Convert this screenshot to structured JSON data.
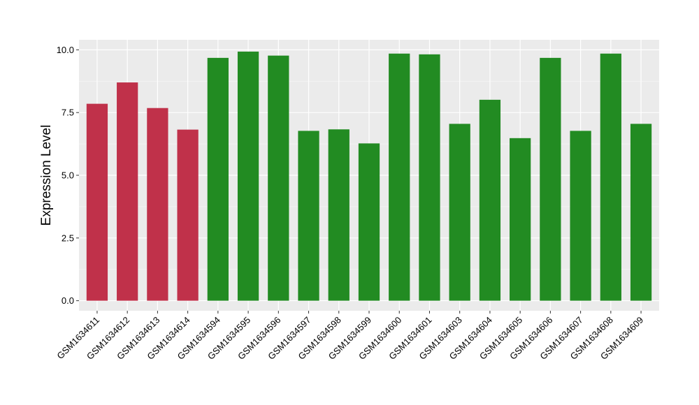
{
  "chart_data": {
    "type": "bar",
    "title": "",
    "xlabel": "",
    "ylabel": "Expression Level",
    "ylim": [
      -0.4,
      10.4
    ],
    "yticks": [
      0.0,
      2.5,
      5.0,
      7.5,
      10.0
    ],
    "ytick_labels": [
      "0.0",
      "2.5",
      "5.0",
      "7.5",
      "10.0"
    ],
    "grid": true,
    "legend": "none",
    "categories": [
      "GSM1634611",
      "GSM1634612",
      "GSM1634613",
      "GSM1634614",
      "GSM1634594",
      "GSM1634595",
      "GSM1634596",
      "GSM1634597",
      "GSM1634598",
      "GSM1634599",
      "GSM1634600",
      "GSM1634601",
      "GSM1634603",
      "GSM1634604",
      "GSM1634605",
      "GSM1634606",
      "GSM1634607",
      "GSM1634608",
      "GSM1634609"
    ],
    "values": [
      7.85,
      8.7,
      7.68,
      6.82,
      9.68,
      9.93,
      9.77,
      6.77,
      6.83,
      6.27,
      9.85,
      9.82,
      7.05,
      8.01,
      6.48,
      9.68,
      6.77,
      9.85,
      7.05
    ],
    "bar_groups": [
      "red",
      "red",
      "red",
      "red",
      "green",
      "green",
      "green",
      "green",
      "green",
      "green",
      "green",
      "green",
      "green",
      "green",
      "green",
      "green",
      "green",
      "green",
      "green"
    ],
    "colors": {
      "red": "#C0314A",
      "green": "#228B22",
      "panel": "#EBEBEB",
      "grid_major": "#FFFFFF",
      "grid_minor": "#F5F5F5",
      "tick": "#333333"
    }
  }
}
